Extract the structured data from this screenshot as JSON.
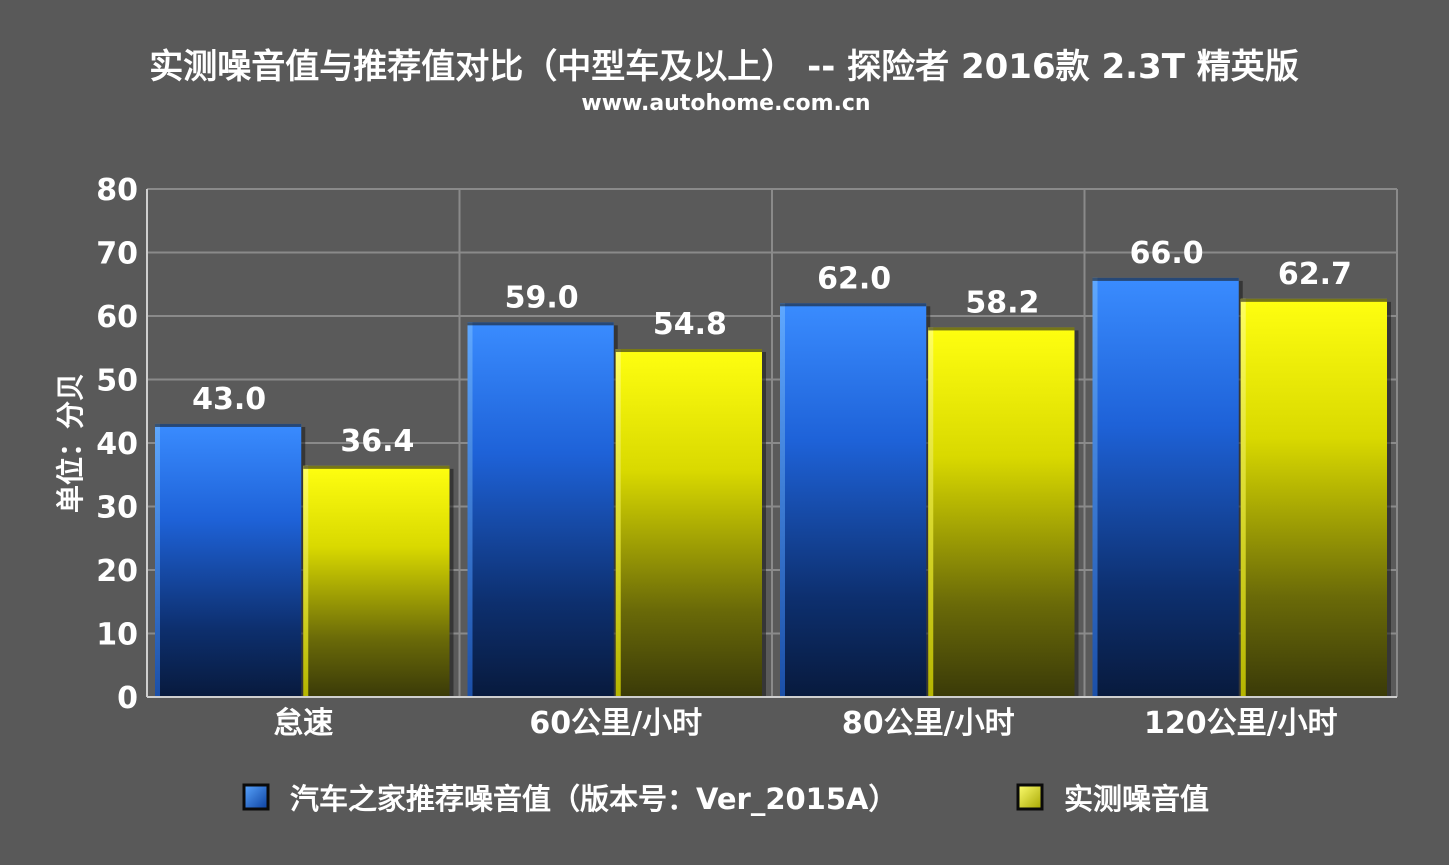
{
  "chart_data": {
    "type": "bar",
    "title": "实测噪音值与推荐值对比（中型车及以上） -- 探险者 2016款 2.3T 精英版",
    "subtitle": "www.autohome.com.cn",
    "xlabel": "",
    "ylabel": "单位：分贝",
    "ylim": [
      0,
      80
    ],
    "yticks": [
      "0",
      "10",
      "20",
      "30",
      "40",
      "50",
      "60",
      "70",
      "80"
    ],
    "categories": [
      "怠速",
      "60公里/小时",
      "80公里/小时",
      "120公里/小时"
    ],
    "series": [
      {
        "name": "汽车之家推荐噪音值（版本号：Ver_2015A）",
        "color": "#2f7fff",
        "values": [
          43.0,
          59.0,
          62.0,
          66.0
        ],
        "labels": [
          "43.0",
          "59.0",
          "62.0",
          "66.0"
        ]
      },
      {
        "name": "实测噪音值",
        "color": "#ffff00",
        "values": [
          36.4,
          54.8,
          58.2,
          62.7
        ],
        "labels": [
          "36.4",
          "54.8",
          "58.2",
          "62.7"
        ]
      }
    ],
    "grid": true,
    "legend": "bottom"
  }
}
